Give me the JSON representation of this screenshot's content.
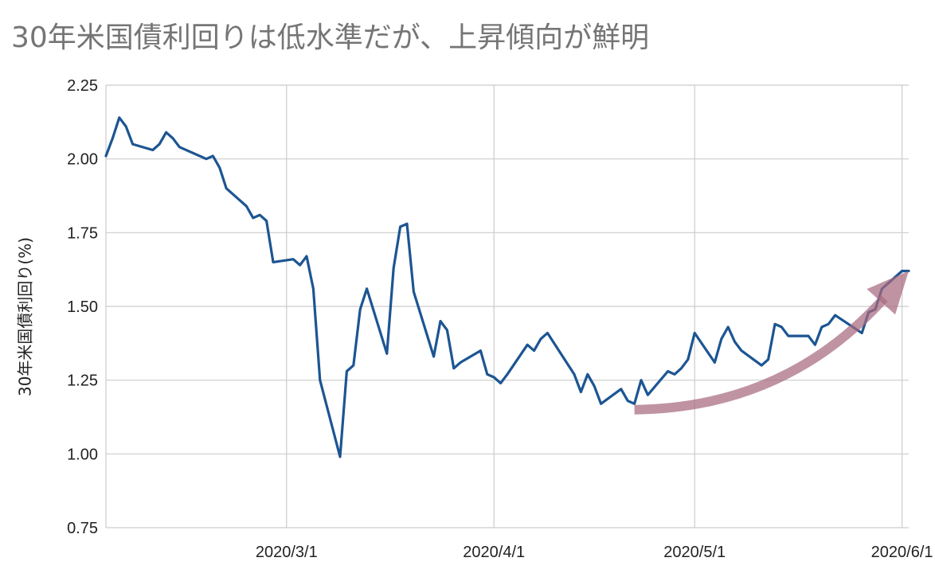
{
  "chart_data": {
    "type": "line",
    "title": "30年米国債利回りは低水準だが、上昇傾向が鮮明",
    "ylabel": "30年米国債利回り(%)",
    "xlabel": "",
    "ylim": [
      0.75,
      2.25
    ],
    "yticks": [
      "0.75",
      "1.00",
      "1.25",
      "1.50",
      "1.75",
      "2.00",
      "2.25"
    ],
    "ytick_values": [
      0.75,
      1.0,
      1.25,
      1.5,
      1.75,
      2.0,
      2.25
    ],
    "xlim": [
      "2020-02-03",
      "2020-06-02"
    ],
    "xticks": [
      "2020/3/1",
      "2020/4/1",
      "2020/5/1",
      "2020/6/1"
    ],
    "xtick_dates": [
      "2020-03-01",
      "2020-04-01",
      "2020-05-01",
      "2020-06-01"
    ],
    "grid": true,
    "line_color": "#1c5592",
    "arrow_color": "#a86a80",
    "trend_arrow": {
      "from": [
        "2020-04-22",
        1.15
      ],
      "to": [
        "2020-06-02",
        1.62
      ]
    },
    "series": [
      {
        "x": [
          "2020-02-03",
          "2020-02-04",
          "2020-02-05",
          "2020-02-06",
          "2020-02-07",
          "2020-02-10",
          "2020-02-11",
          "2020-02-12",
          "2020-02-13",
          "2020-02-14",
          "2020-02-18",
          "2020-02-19",
          "2020-02-20",
          "2020-02-21",
          "2020-02-24",
          "2020-02-25",
          "2020-02-26",
          "2020-02-27",
          "2020-02-28",
          "2020-03-02",
          "2020-03-03",
          "2020-03-04",
          "2020-03-05",
          "2020-03-06",
          "2020-03-09",
          "2020-03-10",
          "2020-03-11",
          "2020-03-12",
          "2020-03-13",
          "2020-03-16",
          "2020-03-17",
          "2020-03-18",
          "2020-03-19",
          "2020-03-20",
          "2020-03-23",
          "2020-03-24",
          "2020-03-25",
          "2020-03-26",
          "2020-03-27",
          "2020-03-30",
          "2020-03-31",
          "2020-04-01",
          "2020-04-02",
          "2020-04-03",
          "2020-04-06",
          "2020-04-07",
          "2020-04-08",
          "2020-04-09",
          "2020-04-13",
          "2020-04-14",
          "2020-04-15",
          "2020-04-16",
          "2020-04-17",
          "2020-04-20",
          "2020-04-21",
          "2020-04-22",
          "2020-04-23",
          "2020-04-24",
          "2020-04-27",
          "2020-04-28",
          "2020-04-29",
          "2020-04-30",
          "2020-05-01",
          "2020-05-04",
          "2020-05-05",
          "2020-05-06",
          "2020-05-07",
          "2020-05-08",
          "2020-05-11",
          "2020-05-12",
          "2020-05-13",
          "2020-05-14",
          "2020-05-15",
          "2020-05-18",
          "2020-05-19",
          "2020-05-20",
          "2020-05-21",
          "2020-05-22",
          "2020-05-26",
          "2020-05-27",
          "2020-05-28",
          "2020-05-29",
          "2020-06-01",
          "2020-06-02"
        ],
        "values": [
          2.01,
          2.07,
          2.14,
          2.11,
          2.05,
          2.03,
          2.05,
          2.09,
          2.07,
          2.04,
          2.0,
          2.01,
          1.97,
          1.9,
          1.84,
          1.8,
          1.81,
          1.79,
          1.65,
          1.66,
          1.64,
          1.67,
          1.56,
          1.25,
          0.99,
          1.28,
          1.3,
          1.49,
          1.56,
          1.34,
          1.63,
          1.77,
          1.78,
          1.55,
          1.33,
          1.45,
          1.42,
          1.29,
          1.31,
          1.35,
          1.27,
          1.26,
          1.24,
          1.27,
          1.37,
          1.35,
          1.39,
          1.41,
          1.27,
          1.21,
          1.27,
          1.23,
          1.17,
          1.22,
          1.18,
          1.17,
          1.25,
          1.2,
          1.28,
          1.27,
          1.29,
          1.32,
          1.41,
          1.31,
          1.39,
          1.43,
          1.38,
          1.35,
          1.3,
          1.32,
          1.44,
          1.43,
          1.4,
          1.4,
          1.37,
          1.43,
          1.44,
          1.47,
          1.41,
          1.48,
          1.49,
          1.56,
          1.62,
          1.62
        ]
      }
    ]
  }
}
